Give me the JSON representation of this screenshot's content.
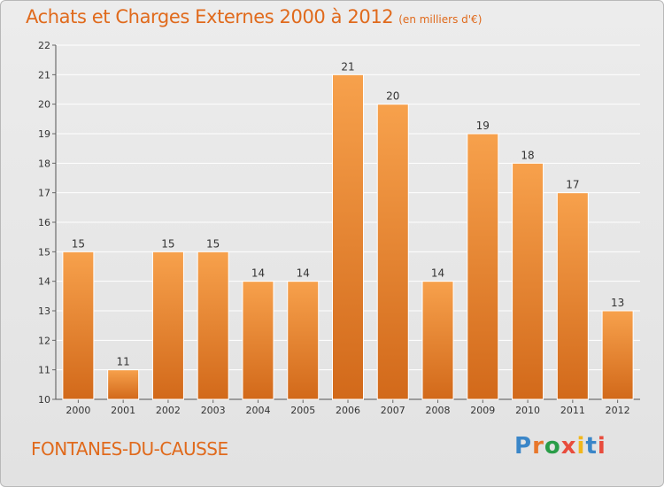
{
  "header": {
    "title": "Achats et Charges Externes 2000 à 2012",
    "unit": "(en milliers d'€)"
  },
  "footer": {
    "commune": "FONTANES-DU-CAUSSE",
    "logo": "Proxiti",
    "logo_colors": [
      "#3a86c8",
      "#e8772b",
      "#2a9d48",
      "#e84c3d",
      "#f2b71c",
      "#3a86c8",
      "#e84c3d"
    ]
  },
  "chart_data": {
    "type": "bar",
    "title": "Achats et Charges Externes 2000 à 2012",
    "categories": [
      "2000",
      "2001",
      "2002",
      "2003",
      "2004",
      "2005",
      "2006",
      "2007",
      "2008",
      "2009",
      "2010",
      "2011",
      "2012"
    ],
    "values": [
      15,
      11,
      15,
      15,
      14,
      14,
      21,
      20,
      14,
      19,
      18,
      17,
      13
    ],
    "data_labels": [
      "15",
      "11",
      "15",
      "15",
      "14",
      "14",
      "21",
      "20",
      "14",
      "19",
      "18",
      "17",
      "13"
    ],
    "yticks": [
      "10",
      "11",
      "12",
      "13",
      "14",
      "15",
      "16",
      "17",
      "18",
      "19",
      "20",
      "21",
      "22"
    ],
    "ylim": [
      10,
      22
    ],
    "grid": true,
    "bar_color_top": "#f7a14c",
    "bar_color_bottom": "#d2691a",
    "grid_color": "#ffffff",
    "background": "#e6e6e6"
  }
}
